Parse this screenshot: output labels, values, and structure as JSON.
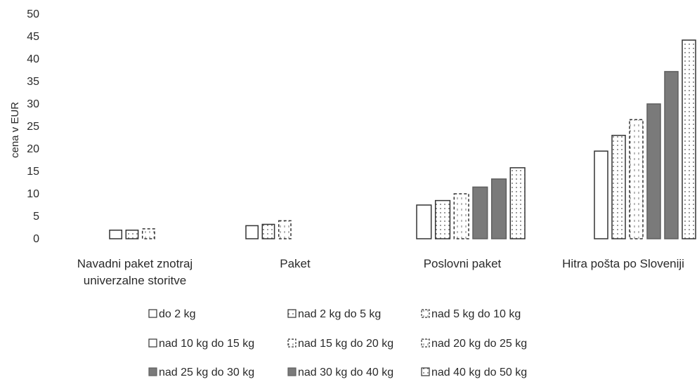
{
  "chart_data": {
    "type": "bar",
    "ylabel": "cena v EUR",
    "xlabel": "",
    "ylim": [
      0,
      50
    ],
    "yticks": [
      0,
      5,
      10,
      15,
      20,
      25,
      30,
      35,
      40,
      45,
      50
    ],
    "grid": false,
    "legend_position": "bottom",
    "categories": [
      [
        "Navadni paket znotraj",
        "univerzalne storitve"
      ],
      [
        "Paket"
      ],
      [
        "Poslovni paket"
      ],
      [
        "Hitra pošta po Sloveniji"
      ]
    ],
    "series": [
      {
        "name": "do 2 kg",
        "style": "outline",
        "color": "#333333",
        "values": [
          1.9,
          2.9,
          7.5,
          19.5
        ]
      },
      {
        "name": "nad 2 kg do 5 kg",
        "style": "dotted",
        "color": "#555555",
        "values": [
          1.9,
          3.2,
          8.5,
          23.0
        ]
      },
      {
        "name": "nad 5 kg do 10 kg",
        "style": "dashed",
        "color": "#444444",
        "values": [
          2.2,
          4.0,
          10.0,
          26.5
        ]
      },
      {
        "name": "nad 10 kg do 15 kg",
        "style": "outline",
        "color": "#333333",
        "values": [
          null,
          null,
          null,
          null
        ]
      },
      {
        "name": "nad 15 kg do 20 kg",
        "style": "dashed",
        "color": "#444444",
        "values": [
          null,
          null,
          null,
          null
        ]
      },
      {
        "name": "nad 20 kg do 25 kg",
        "style": "dashed",
        "color": "#444444",
        "values": [
          null,
          null,
          null,
          null
        ]
      },
      {
        "name": "nad 25 kg do 30 kg",
        "style": "solid",
        "color": "#7a7a7a",
        "values": [
          null,
          null,
          11.5,
          30.0
        ]
      },
      {
        "name": "nad 30 kg do 40 kg",
        "style": "solid",
        "color": "#7a7a7a",
        "values": [
          null,
          null,
          13.3,
          37.2
        ]
      },
      {
        "name": "nad 40 kg do 50 kg",
        "style": "dotted",
        "color": "#555555",
        "values": [
          null,
          null,
          15.8,
          44.2
        ]
      }
    ]
  }
}
